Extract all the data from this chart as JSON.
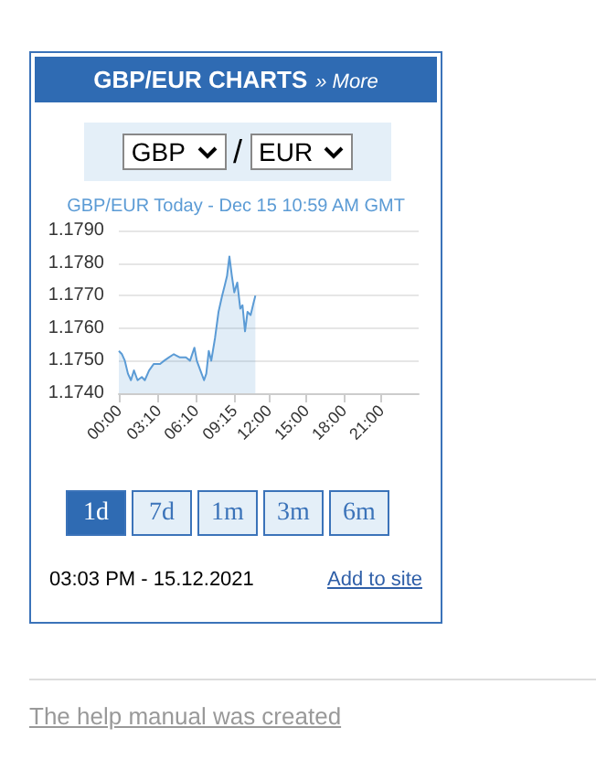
{
  "chart_data": {
    "type": "area",
    "title": "GBP/EUR Today - Dec 15 10:59 AM GMT",
    "x": [
      0,
      0.25,
      0.48,
      0.73,
      0.97,
      1.21,
      1.5,
      1.84,
      2.08,
      2.42,
      2.8,
      3.3,
      3.63,
      4.0,
      4.4,
      4.89,
      5.37,
      5.7,
      6.05,
      6.24,
      6.53,
      6.82,
      7.0,
      7.2,
      7.4,
      7.7,
      7.98,
      8.27,
      8.47,
      8.66,
      8.85,
      9.05,
      9.24,
      9.48,
      9.72,
      9.9,
      10.1,
      10.3,
      10.55,
      10.8,
      10.93
    ],
    "values": [
      1.1753,
      1.1752,
      1.175,
      1.1746,
      1.1744,
      1.1747,
      1.1744,
      1.1745,
      1.1744,
      1.1747,
      1.1749,
      1.1749,
      1.175,
      1.1751,
      1.1752,
      1.1751,
      1.1751,
      1.175,
      1.1754,
      1.175,
      1.1747,
      1.1744,
      1.1746,
      1.1753,
      1.175,
      1.1757,
      1.1765,
      1.177,
      1.1773,
      1.1776,
      1.1782,
      1.1776,
      1.1771,
      1.1774,
      1.1766,
      1.1767,
      1.1759,
      1.1765,
      1.1764,
      1.1768,
      1.177
    ],
    "color": "#5b9bd5",
    "xlim": [
      0,
      24
    ],
    "xticks": [
      {
        "value": 0,
        "label": "00:00"
      },
      {
        "value": 3.1667,
        "label": "03:10"
      },
      {
        "value": 6.1667,
        "label": "06:10"
      },
      {
        "value": 9.25,
        "label": "09:15"
      },
      {
        "value": 12,
        "label": "12:00"
      },
      {
        "value": 15,
        "label": "15:00"
      },
      {
        "value": 18,
        "label": "18:00"
      },
      {
        "value": 21,
        "label": "21:00"
      }
    ],
    "ylim": [
      1.174,
      1.179
    ],
    "yticks": [
      {
        "value": 1.174,
        "label": "1.1740"
      },
      {
        "value": 1.175,
        "label": "1.1750"
      },
      {
        "value": 1.176,
        "label": "1.1760"
      },
      {
        "value": 1.177,
        "label": "1.1770"
      },
      {
        "value": 1.178,
        "label": "1.1780"
      },
      {
        "value": 1.179,
        "label": "1.1790"
      }
    ],
    "grid": "y",
    "marker": "none",
    "annotations": [
      "GBP/EUR CHARTS",
      "» More",
      "GBP",
      "/",
      "EUR",
      "1d",
      "7d",
      "1m",
      "3m",
      "6m",
      "03:03 PM - 15.12.2021",
      "Add to site",
      "The help manual was created"
    ]
  }
}
